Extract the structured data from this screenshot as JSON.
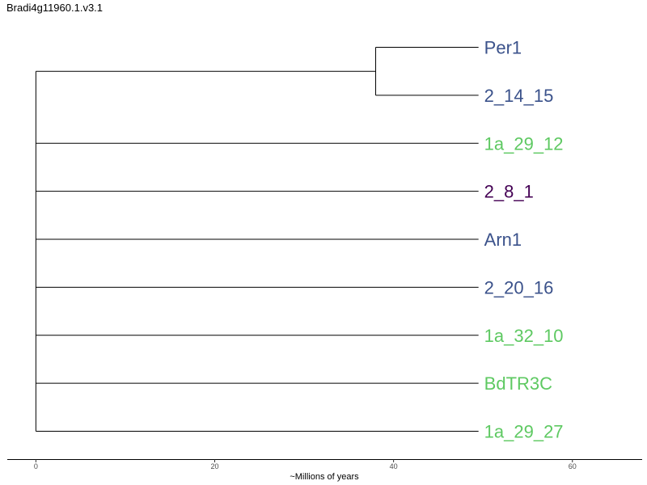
{
  "title": "Bradi4g11960.1.v3.1",
  "axis": {
    "title": "~Millions of years",
    "ticks": [
      0,
      20,
      40,
      60
    ],
    "range": [
      -3.2,
      67.8
    ]
  },
  "colors": {
    "blue": "#3b528b",
    "green": "#5ec962",
    "purple": "#440154"
  },
  "tree": {
    "root_age": 0,
    "clade_node": 38,
    "tip_age": 49.5,
    "leaves": [
      {
        "name": "Per1",
        "color": "#3b528b",
        "parent": "clade"
      },
      {
        "name": "2_14_15",
        "color": "#3b528b",
        "parent": "clade"
      },
      {
        "name": "1a_29_12",
        "color": "#5ec962",
        "parent": "root"
      },
      {
        "name": "2_8_1",
        "color": "#440154",
        "parent": "root"
      },
      {
        "name": "Arn1",
        "color": "#3b528b",
        "parent": "root"
      },
      {
        "name": "2_20_16",
        "color": "#3b528b",
        "parent": "root"
      },
      {
        "name": "1a_32_10",
        "color": "#5ec962",
        "parent": "root"
      },
      {
        "name": "BdTR3C",
        "color": "#5ec962",
        "parent": "root"
      },
      {
        "name": "1a_29_27",
        "color": "#5ec962",
        "parent": "root"
      }
    ]
  }
}
